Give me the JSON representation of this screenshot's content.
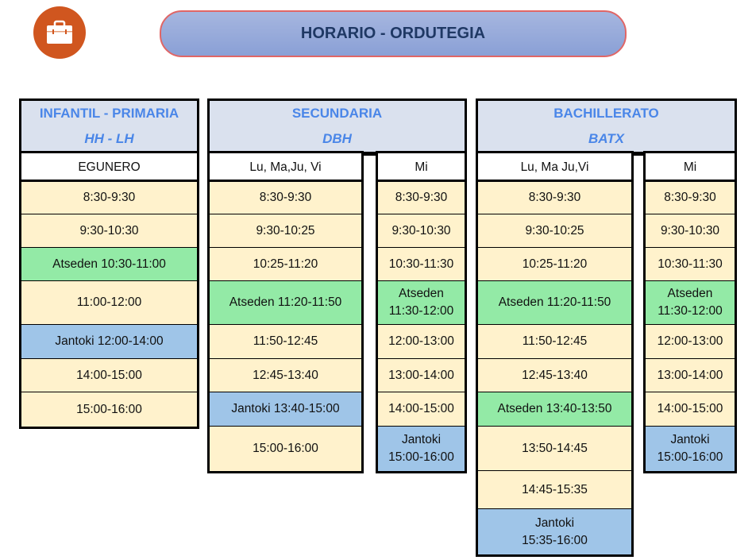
{
  "title": "HORARIO - ORDUTEGIA",
  "logo_icon": "briefcase-icon",
  "colors": {
    "break": "#93eaa6",
    "lunch": "#9fc5e8",
    "class": "#fff2cc",
    "header": "#dae1ee",
    "accent": "#4a86e8"
  },
  "sections": [
    {
      "name": "INFANTIL - PRIMARIA",
      "abbr": "HH - LH"
    },
    {
      "name": "SECUNDARIA",
      "abbr": "DBH"
    },
    {
      "name": "BACHILLERATO",
      "abbr": "BATX"
    }
  ],
  "columns": [
    {
      "day": "EGUNERO",
      "rows": [
        {
          "text": "8:30-9:30",
          "type": "class"
        },
        {
          "text": "9:30-10:30",
          "type": "class"
        },
        {
          "text": "Atseden 10:30-11:00",
          "type": "break"
        },
        {
          "text": "11:00-12:00",
          "type": "class"
        },
        {
          "text": "Jantoki 12:00-14:00",
          "type": "lunch"
        },
        {
          "text": "14:00-15:00",
          "type": "class"
        },
        {
          "text": "15:00-16:00",
          "type": "class"
        }
      ]
    },
    {
      "day": "Lu, Ma,Ju, Vi",
      "rows": [
        {
          "text": "8:30-9:30",
          "type": "class"
        },
        {
          "text": "9:30-10:25",
          "type": "class"
        },
        {
          "text": "10:25-11:20",
          "type": "class"
        },
        {
          "text": "Atseden 11:20-11:50",
          "type": "break"
        },
        {
          "text": "11:50-12:45",
          "type": "class"
        },
        {
          "text": "12:45-13:40",
          "type": "class"
        },
        {
          "text": "Jantoki 13:40-15:00",
          "type": "lunch"
        },
        {
          "text": "15:00-16:00",
          "type": "class"
        }
      ]
    },
    {
      "day": "Mi",
      "rows": [
        {
          "text": "8:30-9:30",
          "type": "class"
        },
        {
          "text": "9:30-10:30",
          "type": "class"
        },
        {
          "text": "10:30-11:30",
          "type": "class"
        },
        {
          "text": "Atseden\n11:30-12:00",
          "type": "break"
        },
        {
          "text": "12:00-13:00",
          "type": "class"
        },
        {
          "text": "13:00-14:00",
          "type": "class"
        },
        {
          "text": "14:00-15:00",
          "type": "class"
        },
        {
          "text": "Jantoki\n15:00-16:00",
          "type": "lunch"
        }
      ]
    },
    {
      "day": "Lu, Ma Ju,Vi",
      "rows": [
        {
          "text": "8:30-9:30",
          "type": "class"
        },
        {
          "text": "9:30-10:25",
          "type": "class"
        },
        {
          "text": "10:25-11:20",
          "type": "class"
        },
        {
          "text": "Atseden 11:20-11:50",
          "type": "break"
        },
        {
          "text": "11:50-12:45",
          "type": "class"
        },
        {
          "text": "12:45-13:40",
          "type": "class"
        },
        {
          "text": "Atseden 13:40-13:50",
          "type": "break"
        },
        {
          "text": "13:50-14:45",
          "type": "class"
        },
        {
          "text": "14:45-15:35",
          "type": "class"
        },
        {
          "text": "Jantoki\n15:35-16:00",
          "type": "lunch"
        }
      ]
    },
    {
      "day": "Mi",
      "rows": [
        {
          "text": "8:30-9:30",
          "type": "class"
        },
        {
          "text": "9:30-10:30",
          "type": "class"
        },
        {
          "text": "10:30-11:30",
          "type": "class"
        },
        {
          "text": "Atseden\n11:30-12:00",
          "type": "break"
        },
        {
          "text": "12:00-13:00",
          "type": "class"
        },
        {
          "text": "13:00-14:00",
          "type": "class"
        },
        {
          "text": "14:00-15:00",
          "type": "class"
        },
        {
          "text": "Jantoki\n15:00-16:00",
          "type": "lunch"
        }
      ]
    }
  ]
}
